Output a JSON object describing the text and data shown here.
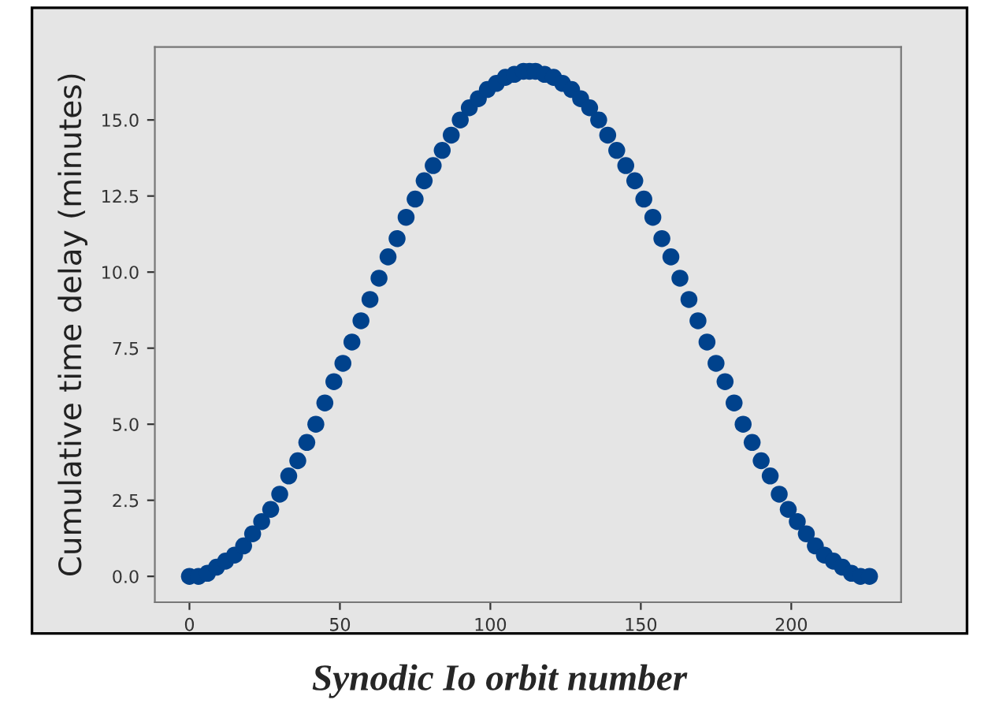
{
  "chart_data": {
    "type": "scatter",
    "xlabel": "Synodic Io orbit number",
    "ylabel": "Cumulative time delay (minutes)",
    "x": [
      0,
      3,
      6,
      9,
      12,
      15,
      18,
      21,
      24,
      27,
      30,
      33,
      36,
      39,
      42,
      45,
      48,
      51,
      54,
      57,
      60,
      63,
      66,
      69,
      72,
      75,
      78,
      81,
      84,
      87,
      90,
      93,
      96,
      99,
      102,
      105,
      108,
      111,
      113,
      115,
      118,
      121,
      124,
      127,
      130,
      133,
      136,
      139,
      142,
      145,
      148,
      151,
      154,
      157,
      160,
      163,
      166,
      169,
      172,
      175,
      178,
      181,
      184,
      187,
      190,
      193,
      196,
      199,
      202,
      205,
      208,
      211,
      214,
      217,
      220,
      223,
      226
    ],
    "series": [
      {
        "color": "#00428c",
        "values": [
          0,
          0.0,
          0.1,
          0.3,
          0.5,
          0.7,
          1.0,
          1.4,
          1.8,
          2.2,
          2.7,
          3.3,
          3.8,
          4.4,
          5.0,
          5.7,
          6.4,
          7.0,
          7.7,
          8.4,
          9.1,
          9.8,
          10.5,
          11.1,
          11.8,
          12.4,
          13.0,
          13.5,
          14.0,
          14.5,
          15.0,
          15.4,
          15.7,
          16.0,
          16.2,
          16.4,
          16.5,
          16.6,
          16.6,
          16.6,
          16.5,
          16.4,
          16.2,
          16.0,
          15.7,
          15.4,
          15.0,
          14.5,
          14.0,
          13.5,
          13.0,
          12.4,
          11.8,
          11.1,
          10.5,
          9.8,
          9.1,
          8.4,
          7.7,
          7.0,
          6.4,
          5.7,
          5.0,
          4.4,
          3.8,
          3.3,
          2.7,
          2.2,
          1.8,
          1.4,
          1.0,
          0.7,
          0.5,
          0.3,
          0.1,
          0.0,
          0
        ]
      }
    ],
    "xlim": [
      -11.5,
      236.5
    ],
    "ylim": [
      -0.85,
      17.4
    ],
    "xticks": [
      0,
      50,
      100,
      150,
      200
    ],
    "yticks": [
      {
        "value": 0,
        "label": "0.0"
      },
      {
        "value": 2.5,
        "label": "2.5"
      },
      {
        "value": 5,
        "label": "5.0"
      },
      {
        "value": 7.5,
        "label": "7.5"
      },
      {
        "value": 10,
        "label": "10.0"
      },
      {
        "value": 12.5,
        "label": "12.5"
      },
      {
        "value": 15,
        "label": "15.0"
      }
    ],
    "marker": "circle",
    "grid": false
  }
}
